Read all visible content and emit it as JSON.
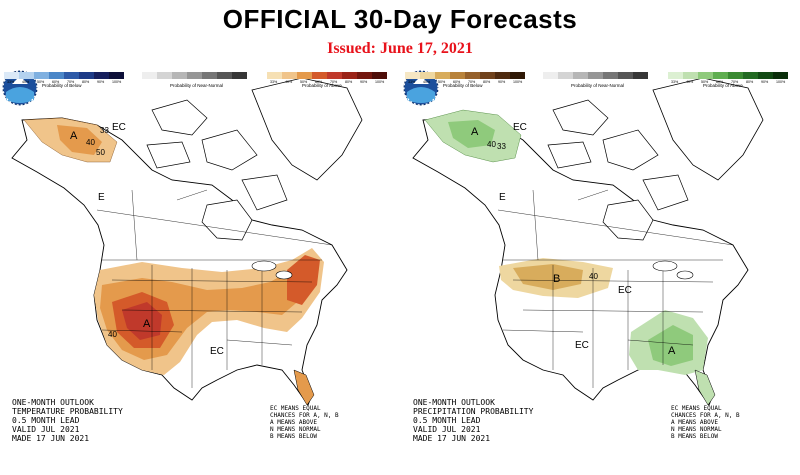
{
  "title": "OFFICIAL 30-Day Forecasts",
  "issued": "Issued: June 17, 2021",
  "colors": {
    "title": "#000000",
    "issued": "#e8121b",
    "temp_above_light": "#f0c48a",
    "temp_above_mid": "#e49a4c",
    "temp_above_dark": "#d45a2a",
    "temp_above_darker": "#c0392b",
    "precip_above_light": "#bfe0b0",
    "precip_above_mid": "#8fca7c",
    "precip_below_light": "#eed7a0",
    "precip_below_mid": "#d8ac5c"
  },
  "left_map": {
    "info_lines": [
      "ONE-MONTH OUTLOOK",
      "TEMPERATURE PROBABILITY",
      "0.5 MONTH LEAD",
      "VALID JUL 2021",
      "MADE 17 JUN 2021"
    ],
    "key_lines": [
      "EC MEANS EQUAL",
      "CHANCES FOR A, N, B",
      "A MEANS ABOVE",
      "N MEANS NORMAL",
      "B MEANS BELOW"
    ],
    "region_labels": {
      "ec_alaska": "EC",
      "ec_west": "E",
      "ec_south": "EC",
      "above": "A",
      "above_alaska": "A",
      "c40": "40",
      "c50": "50",
      "c33": "33"
    },
    "legend_groups": [
      "Probability of Below",
      "Probability of Near-Normal",
      "Probability of Above"
    ]
  },
  "right_map": {
    "info_lines": [
      "ONE-MONTH OUTLOOK",
      "PRECIPITATION PROBABILITY",
      "0.5 MONTH LEAD",
      "VALID JUL 2021",
      "MADE 17 JUN 2021"
    ],
    "key_lines": [
      "EC MEANS EQUAL",
      "CHANCES FOR A, N, B",
      "A MEANS ABOVE",
      "N MEANS NORMAL",
      "B MEANS BELOW"
    ],
    "region_labels": {
      "ec_alaska": "EC",
      "ec_west": "E",
      "ec_central": "EC",
      "ec_sw": "EC",
      "below": "B",
      "above_alaska": "A",
      "above_se": "A",
      "c40": "40",
      "c33": "33"
    },
    "legend_groups": [
      "Probability of Below",
      "Probability of Near-Normal",
      "Probability of Above"
    ]
  },
  "legend_values": [
    "33%",
    "40%",
    "50%",
    "60%",
    "70%",
    "80%",
    "90%",
    "100%"
  ]
}
